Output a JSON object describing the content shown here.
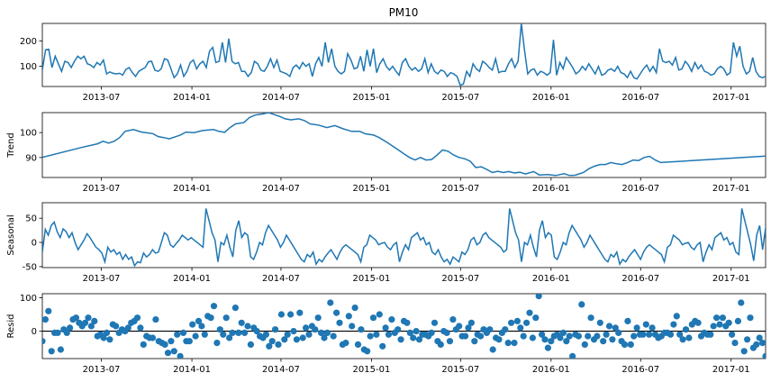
{
  "chart_data": {
    "type": "line",
    "title": "PM10",
    "x_range": [
      "2013-03-03",
      "2017-03-12"
    ],
    "x_ticks": [
      "2013-07",
      "2014-01",
      "2014-07",
      "2015-01",
      "2015-07",
      "2016-01",
      "2016-07",
      "2017-01"
    ],
    "line_color": "#1f77b4",
    "panels": [
      {
        "name": "observed",
        "ylabel": "",
        "ylim": [
          20,
          270
        ],
        "yticks": [
          100,
          200
        ],
        "values": [
          85,
          165,
          168,
          95,
          140,
          110,
          80,
          120,
          115,
          95,
          120,
          140,
          130,
          140,
          110,
          105,
          95,
          115,
          105,
          125,
          70,
          78,
          72,
          70,
          72,
          65,
          88,
          95,
          75,
          60,
          80,
          88,
          95,
          118,
          120,
          85,
          80,
          90,
          130,
          125,
          90,
          55,
          70,
          105,
          60,
          80,
          115,
          125,
          90,
          110,
          120,
          95,
          160,
          175,
          115,
          120,
          195,
          115,
          210,
          120,
          110,
          115,
          80,
          80,
          60,
          75,
          120,
          110,
          85,
          80,
          100,
          130,
          95,
          125,
          80,
          75,
          70,
          60,
          95,
          105,
          90,
          115,
          100,
          110,
          60,
          110,
          135,
          100,
          195,
          115,
          170,
          100,
          80,
          70,
          80,
          150,
          125,
          90,
          95,
          140,
          80,
          165,
          100,
          170,
          75,
          110,
          130,
          100,
          85,
          100,
          80,
          65,
          115,
          130,
          100,
          85,
          95,
          80,
          90,
          130,
          75,
          110,
          80,
          70,
          85,
          80,
          60,
          75,
          70,
          60,
          25,
          30,
          80,
          60,
          110,
          90,
          80,
          120,
          110,
          95,
          85,
          130,
          75,
          80,
          80,
          110,
          130,
          95,
          120,
          270,
          165,
          70,
          85,
          90,
          65,
          80,
          75,
          65,
          75,
          205,
          65,
          115,
          90,
          135,
          115,
          95,
          70,
          80,
          100,
          85,
          110,
          90,
          70,
          100,
          65,
          70,
          85,
          90,
          80,
          100,
          75,
          70,
          55,
          80,
          55,
          50,
          70,
          90,
          105,
          80,
          100,
          75,
          170,
          120,
          115,
          120,
          105,
          135,
          85,
          90,
          120,
          105,
          80,
          115,
          90,
          105,
          80,
          75,
          65,
          70,
          90,
          100,
          90,
          65,
          75,
          195,
          140,
          180,
          100,
          70,
          80,
          135,
          80,
          60,
          55,
          60
        ]
      },
      {
        "name": "trend",
        "ylabel": "Trend",
        "ylim": [
          82,
          108
        ],
        "yticks": [
          90,
          100
        ],
        "points": [
          [
            0,
            90.1
          ],
          [
            14,
            94
          ],
          [
            20,
            95.5
          ],
          [
            22,
            96.5
          ],
          [
            24,
            95.8
          ],
          [
            26,
            96.5
          ],
          [
            28,
            98
          ],
          [
            30,
            100.5
          ],
          [
            33,
            101.2
          ],
          [
            36,
            100.2
          ],
          [
            40,
            99.6
          ],
          [
            42,
            98.4
          ],
          [
            44,
            98
          ],
          [
            46,
            97.5
          ],
          [
            50,
            99
          ],
          [
            52,
            100.2
          ],
          [
            55,
            100
          ],
          [
            58,
            100.8
          ],
          [
            62,
            101.2
          ],
          [
            64,
            100.5
          ],
          [
            66,
            100.1
          ],
          [
            68,
            102
          ],
          [
            70,
            103.5
          ],
          [
            73,
            104
          ],
          [
            75,
            106
          ],
          [
            77,
            107
          ],
          [
            80,
            107.5
          ],
          [
            82,
            108
          ],
          [
            84,
            107.2
          ],
          [
            86,
            106.5
          ],
          [
            88,
            105.5
          ],
          [
            90,
            105.1
          ],
          [
            93,
            105.5
          ],
          [
            95,
            104.8
          ],
          [
            97,
            103.5
          ],
          [
            100,
            103
          ],
          [
            103,
            102
          ],
          [
            106,
            102.8
          ],
          [
            109,
            101.5
          ],
          [
            112,
            100.5
          ],
          [
            115,
            100.5
          ],
          [
            117,
            99.5
          ],
          [
            120,
            99
          ],
          [
            122,
            98
          ],
          [
            125,
            96
          ],
          [
            127,
            94.5
          ],
          [
            129,
            93
          ],
          [
            131,
            91.5
          ],
          [
            133,
            90
          ],
          [
            135,
            89
          ],
          [
            137,
            90
          ],
          [
            139,
            89
          ],
          [
            141,
            89.2
          ],
          [
            143,
            91
          ],
          [
            145,
            93
          ],
          [
            147,
            92.5
          ],
          [
            149,
            91
          ],
          [
            151,
            90
          ],
          [
            153,
            89.5
          ],
          [
            155,
            88.5
          ],
          [
            157,
            86
          ],
          [
            159,
            86.3
          ],
          [
            161,
            85.2
          ],
          [
            163,
            84
          ],
          [
            165,
            84.5
          ],
          [
            167,
            84
          ],
          [
            169,
            84.4
          ],
          [
            171,
            83.8
          ],
          [
            173,
            84.1
          ],
          [
            175,
            83.4
          ],
          [
            178,
            84.4
          ],
          [
            180,
            83
          ],
          [
            183,
            83.2
          ],
          [
            186,
            82.8
          ],
          [
            189,
            83.5
          ],
          [
            191,
            82.8
          ],
          [
            193,
            82.9
          ],
          [
            196,
            84
          ],
          [
            198,
            85.5
          ],
          [
            200,
            86.5
          ],
          [
            202,
            87.2
          ],
          [
            204,
            87.2
          ],
          [
            206,
            88
          ],
          [
            208,
            87.5
          ],
          [
            210,
            87.2
          ],
          [
            212,
            88
          ],
          [
            214,
            89
          ],
          [
            216,
            88.8
          ],
          [
            218,
            90
          ],
          [
            220,
            90.5
          ],
          [
            222,
            89
          ],
          [
            224,
            88
          ],
          [
            262,
            90.6
          ]
        ]
      },
      {
        "name": "seasonal",
        "ylabel": "Seasonal",
        "ylim": [
          -52,
          82
        ],
        "yticks": [
          -50,
          0,
          50
        ],
        "values": [
          -20,
          27,
          15,
          35,
          42,
          22,
          10,
          28,
          22,
          10,
          20,
          0,
          -15,
          -5,
          5,
          18,
          10,
          0,
          -10,
          -15,
          -22,
          -40,
          -10,
          -20,
          -15,
          -25,
          -20,
          -35,
          -25,
          -35,
          -30,
          -48,
          -40,
          -42,
          -22,
          -30,
          -25,
          -15,
          -22,
          -20,
          0,
          20,
          15,
          -5,
          -10,
          -2,
          5,
          15,
          10,
          5,
          10,
          5,
          0,
          -5,
          -10,
          70,
          45,
          20,
          5,
          -40,
          0,
          -5,
          15,
          -10,
          -30,
          25,
          45,
          10,
          20,
          15,
          -30,
          -35,
          -20,
          0,
          -5,
          20,
          35,
          25,
          15,
          5,
          -10,
          0,
          15,
          5,
          -5,
          -15,
          -25,
          -35,
          -40,
          -25,
          -30,
          -20,
          -45,
          -35,
          -40,
          -30,
          -22,
          -15,
          -25,
          -35,
          -20,
          -10,
          -5,
          -10,
          -15,
          -20,
          -25,
          -40,
          -10,
          -5,
          15,
          10,
          5,
          -5,
          -2,
          0,
          -10,
          -15,
          -5,
          0,
          -40,
          -20,
          -5,
          -15,
          10,
          15,
          20,
          5,
          10,
          -5,
          0,
          -20,
          -25,
          -15,
          -30,
          -40,
          -35,
          -45,
          -30,
          -35,
          -40,
          -20,
          -25,
          -15,
          5,
          10,
          -5,
          0,
          15,
          20,
          10,
          5,
          0,
          -5,
          -10,
          -20,
          -15,
          70,
          45,
          20,
          5,
          -40,
          0,
          -5,
          15,
          -10,
          -30,
          25,
          45,
          10,
          20,
          15,
          -30,
          -35,
          -20,
          0,
          -5,
          20,
          35,
          25,
          15,
          5,
          -10,
          0,
          15,
          5,
          -5,
          -15,
          -25,
          -35,
          -40,
          -25,
          -30,
          -20,
          -45,
          -35,
          -40,
          -30,
          -22,
          -15,
          -25,
          -35,
          -20,
          -10,
          -5,
          -10,
          -15,
          -20,
          -25,
          -40,
          -10,
          -5,
          15,
          10,
          5,
          -5,
          -2,
          0,
          -10,
          -15,
          -5,
          0,
          -40,
          -20,
          -5,
          -15,
          10,
          15,
          20,
          5,
          10,
          -5,
          0,
          -20,
          -25,
          70,
          45,
          20,
          -5,
          -38,
          15,
          35,
          -15,
          30
        ]
      },
      {
        "name": "resid",
        "ylabel": "Resid",
        "ylim": [
          -82,
          112
        ],
        "yticks": [
          0,
          100
        ],
        "baseline": 0,
        "values": [
          -30,
          35,
          60,
          -60,
          -5,
          -5,
          -55,
          5,
          -5,
          10,
          35,
          40,
          25,
          15,
          25,
          40,
          15,
          30,
          -15,
          -10,
          -20,
          -5,
          -25,
          20,
          15,
          -5,
          5,
          0,
          10,
          25,
          30,
          40,
          10,
          -40,
          -15,
          -20,
          -20,
          35,
          -30,
          -35,
          -40,
          -65,
          -30,
          -60,
          -10,
          -75,
          -5,
          -30,
          -30,
          20,
          -15,
          30,
          15,
          -10,
          45,
          40,
          75,
          -35,
          5,
          -10,
          40,
          -20,
          -5,
          70,
          -5,
          25,
          -5,
          15,
          -40,
          10,
          0,
          -15,
          -20,
          -10,
          -45,
          -30,
          5,
          -40,
          50,
          -25,
          -10,
          50,
          0,
          -25,
          55,
          -20,
          10,
          -10,
          15,
          5,
          40,
          -5,
          -20,
          -5,
          85,
          -15,
          55,
          25,
          -40,
          -35,
          45,
          15,
          70,
          -40,
          5,
          -55,
          -60,
          -15,
          40,
          -10,
          50,
          -45,
          10,
          -10,
          35,
          -5,
          5,
          -25,
          30,
          25,
          -5,
          -20,
          0,
          -25,
          -10,
          -10,
          -15,
          -5,
          25,
          -30,
          -40,
          0,
          -5,
          -30,
          35,
          5,
          15,
          -15,
          -15,
          10,
          25,
          -30,
          -10,
          -15,
          5,
          -5,
          5,
          -55,
          -20,
          -25,
          -5,
          5,
          -35,
          25,
          -35,
          30,
          10,
          -15,
          25,
          55,
          -20,
          40,
          105,
          -10,
          -25,
          -50,
          -30,
          -15,
          -10,
          -20,
          -5,
          -30,
          -15,
          -75,
          -10,
          -15,
          80,
          -40,
          -15,
          40,
          -25,
          -15,
          25,
          -30,
          -10,
          15,
          -25,
          10,
          -5,
          -30,
          -40,
          30,
          -40,
          -15,
          10,
          -10,
          -10,
          20,
          -10,
          10,
          -10,
          -20,
          -15,
          -5,
          -5,
          -10,
          20,
          45,
          -10,
          -25,
          5,
          -20,
          20,
          30,
          25,
          -15,
          -5,
          -10,
          -10,
          15,
          40,
          20,
          40,
          15,
          25,
          -10,
          -35,
          30,
          85,
          -60,
          -25,
          40,
          -50,
          -40,
          -20,
          -35,
          -75
        ]
      }
    ]
  }
}
